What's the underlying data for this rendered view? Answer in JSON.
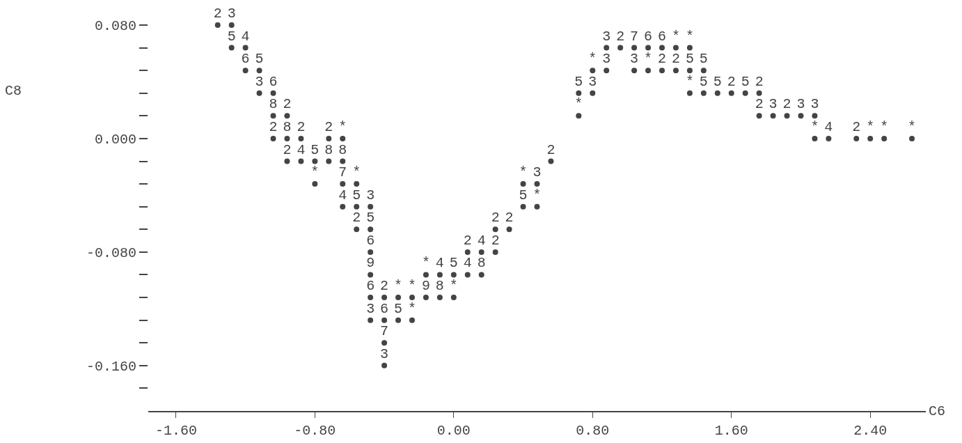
{
  "chart_data": {
    "type": "scatter",
    "xlabel": "C6",
    "ylabel": "C8",
    "xlim": [
      -1.76,
      2.72
    ],
    "ylim": [
      -0.192,
      0.08
    ],
    "xticks": [
      {
        "value": -1.6,
        "label": "-1.60"
      },
      {
        "value": -0.8,
        "label": "-0.80"
      },
      {
        "value": 0,
        "label": "0.00"
      },
      {
        "value": 0.8,
        "label": "0.80"
      },
      {
        "value": 1.6,
        "label": "1.60"
      },
      {
        "value": 2.4,
        "label": "2.40"
      }
    ],
    "yticks": [
      {
        "value": 0.08,
        "label": "0.080"
      },
      {
        "value": 0.064,
        "label": null
      },
      {
        "value": 0.048,
        "label": null
      },
      {
        "value": 0.032,
        "label": null
      },
      {
        "value": 0.016,
        "label": null
      },
      {
        "value": 0,
        "label": "0.000"
      },
      {
        "value": -0.016,
        "label": null
      },
      {
        "value": -0.032,
        "label": null
      },
      {
        "value": -0.048,
        "label": null
      },
      {
        "value": -0.064,
        "label": null
      },
      {
        "value": -0.08,
        "label": "-0.080"
      },
      {
        "value": -0.096,
        "label": null
      },
      {
        "value": -0.112,
        "label": null
      },
      {
        "value": -0.128,
        "label": null
      },
      {
        "value": -0.144,
        "label": null
      },
      {
        "value": -0.16,
        "label": "-0.160"
      },
      {
        "value": -0.176,
        "label": null
      }
    ],
    "grid": false,
    "legend": false,
    "marker": "circle",
    "series": [
      {
        "name": "*",
        "color": "#444444",
        "x": [
          1.28,
          1.36,
          0.8,
          1.12,
          1.36,
          0.72,
          -0.64,
          2.08,
          2.4,
          2.48,
          2.64,
          -0.8,
          -0.56,
          0.4,
          0.48,
          -0.16,
          -0.32,
          -0.24,
          0,
          -0.24
        ],
        "values": [
          0.064,
          0.064,
          0.048,
          0.048,
          0.032,
          0.016,
          0,
          0,
          0,
          0,
          0,
          -0.032,
          -0.032,
          -0.032,
          -0.048,
          -0.096,
          -0.112,
          -0.112,
          -0.112,
          -0.128
        ]
      },
      {
        "name": "2",
        "color": "#444444",
        "x": [
          -1.36,
          0.96,
          1.2,
          1.28,
          1.6,
          1.76,
          -0.96,
          1.76,
          1.92,
          -1.04,
          -0.88,
          -0.72,
          2.32,
          -0.96,
          0.56,
          -0.56,
          0.24,
          0.32,
          0.08,
          0.24,
          -0.4
        ],
        "values": [
          0.08,
          0.064,
          0.048,
          0.048,
          0.032,
          0.032,
          0.016,
          0.016,
          0.016,
          0,
          0,
          0,
          0,
          -0.016,
          -0.016,
          -0.064,
          -0.064,
          -0.064,
          -0.08,
          -0.08,
          -0.112
        ]
      },
      {
        "name": "3",
        "color": "#444444",
        "x": [
          -1.28,
          0.88,
          0.88,
          1.04,
          -1.12,
          0.8,
          1.84,
          2.0,
          2.08,
          0.48,
          -0.48,
          -0.48,
          -0.4
        ],
        "values": [
          0.08,
          0.064,
          0.048,
          0.048,
          0.032,
          0.032,
          0.016,
          0.016,
          0.016,
          -0.032,
          -0.048,
          -0.128,
          -0.16
        ]
      },
      {
        "name": "4",
        "color": "#444444",
        "x": [
          -1.2,
          2.16,
          -0.88,
          -0.64,
          0.16,
          -0.08,
          0.08
        ],
        "values": [
          0.064,
          0,
          -0.016,
          -0.048,
          -0.08,
          -0.096,
          -0.096
        ]
      },
      {
        "name": "5",
        "color": "#444444",
        "x": [
          -1.28,
          -1.12,
          1.36,
          1.44,
          0.72,
          1.44,
          1.52,
          1.68,
          -0.8,
          -0.56,
          0.4,
          -0.48,
          0,
          -0.32
        ],
        "values": [
          0.064,
          0.048,
          0.048,
          0.048,
          0.032,
          0.032,
          0.032,
          0.032,
          -0.016,
          -0.048,
          -0.048,
          -0.064,
          -0.096,
          -0.128
        ]
      },
      {
        "name": "6",
        "color": "#444444",
        "x": [
          1.12,
          1.2,
          -1.2,
          -1.04,
          -0.48,
          -0.48,
          -0.4
        ],
        "values": [
          0.064,
          0.064,
          0.048,
          0.032,
          -0.08,
          -0.112,
          -0.128
        ]
      },
      {
        "name": "7",
        "color": "#444444",
        "x": [
          1.04,
          -0.64,
          -0.4
        ],
        "values": [
          0.064,
          -0.032,
          -0.144
        ]
      },
      {
        "name": "8",
        "color": "#444444",
        "x": [
          -1.04,
          -0.96,
          -0.72,
          -0.64,
          0.16,
          -0.08
        ],
        "values": [
          0.016,
          0,
          -0.016,
          -0.016,
          -0.096,
          -0.112
        ]
      },
      {
        "name": "9",
        "color": "#444444",
        "x": [
          -0.48,
          -0.16
        ],
        "values": [
          -0.096,
          -0.112
        ]
      }
    ]
  }
}
